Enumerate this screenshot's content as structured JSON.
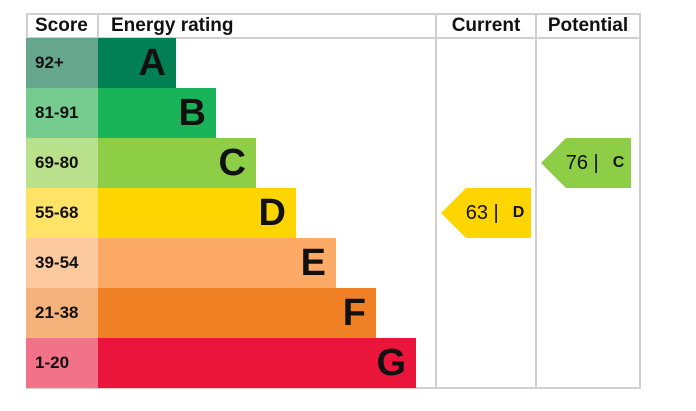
{
  "chart_data": {
    "type": "table",
    "headers": {
      "score": "Score",
      "rating": "Energy rating",
      "current": "Current",
      "potential": "Potential"
    },
    "bands": [
      {
        "score": "92+",
        "letter": "A",
        "color": "#008054",
        "light": "#66a68c"
      },
      {
        "score": "81-91",
        "letter": "B",
        "color": "#19b459",
        "light": "#75cc8e"
      },
      {
        "score": "69-80",
        "letter": "C",
        "color": "#8dce46",
        "light": "#b9e08a"
      },
      {
        "score": "55-68",
        "letter": "D",
        "color": "#ffd500",
        "light": "#ffe366"
      },
      {
        "score": "39-54",
        "letter": "E",
        "color": "#fcaa65",
        "light": "#fdcaa0"
      },
      {
        "score": "21-38",
        "letter": "F",
        "color": "#ef8023",
        "light": "#f5b37b"
      },
      {
        "score": "1-20",
        "letter": "G",
        "color": "#e9153b",
        "light": "#f27389"
      }
    ],
    "current": {
      "value": 63,
      "letter": "D",
      "label": "63 |"
    },
    "potential": {
      "value": 76,
      "letter": "C",
      "label": "76 |"
    }
  }
}
